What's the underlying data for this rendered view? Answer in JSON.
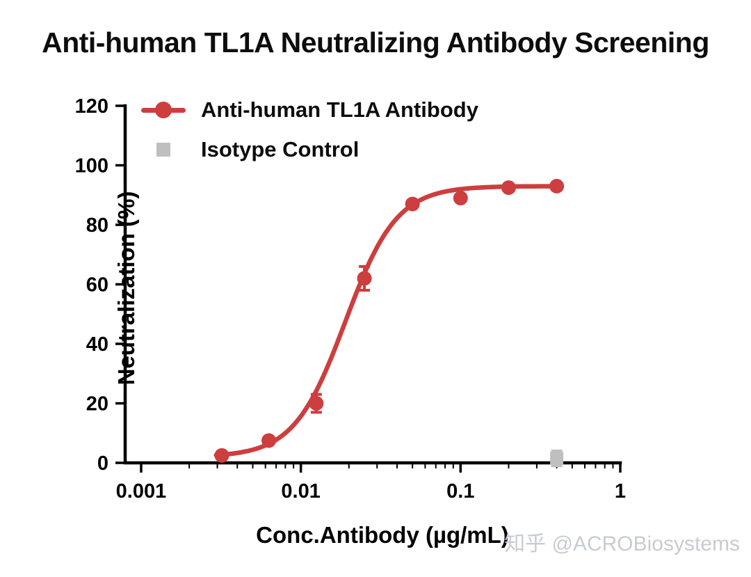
{
  "title": "Anti-human TL1A Neutralizing Antibody Screening",
  "watermark": "知乎 @ACROBiosystems",
  "legend": [
    {
      "label": "Anti-human TL1A Antibody",
      "marker": "circle-line",
      "color": "#CD3E3E"
    },
    {
      "label": "Isotype Control",
      "marker": "square",
      "color": "#BFBFBF"
    }
  ],
  "chart_data": {
    "type": "scatter",
    "title": "Anti-human TL1A Neutralizing Antibody Screening",
    "xlabel": "Conc.Antibody (µg/mL)",
    "ylabel": "Neutralization (%)",
    "x_scale": "log10",
    "xlim": [
      0.001,
      1
    ],
    "ylim": [
      0,
      120
    ],
    "x_ticks": [
      {
        "v": 0.001,
        "label": "0.001"
      },
      {
        "v": 0.01,
        "label": "0.01"
      },
      {
        "v": 0.1,
        "label": "0.1"
      },
      {
        "v": 1,
        "label": "1"
      }
    ],
    "y_ticks": [
      0,
      20,
      40,
      60,
      80,
      100,
      120
    ],
    "grid": false,
    "legend_position": "top-left-inside",
    "series": [
      {
        "name": "Anti-human TL1A Antibody",
        "color": "#CD3E3E",
        "marker": "circle",
        "points": [
          {
            "x": 0.0032,
            "y": 2.5,
            "err": 0
          },
          {
            "x": 0.0063,
            "y": 7.5,
            "err": 0
          },
          {
            "x": 0.0125,
            "y": 20,
            "err": 3
          },
          {
            "x": 0.025,
            "y": 62,
            "err": 4
          },
          {
            "x": 0.05,
            "y": 87,
            "err": 0
          },
          {
            "x": 0.1,
            "y": 89,
            "err": 0
          },
          {
            "x": 0.2,
            "y": 92.5,
            "err": 0
          },
          {
            "x": 0.4,
            "y": 93,
            "err": 0
          }
        ],
        "fit": {
          "model": "4PL",
          "bottom": 2,
          "top": 93,
          "ec50": 0.019,
          "hill": 2.7
        }
      },
      {
        "name": "Isotype Control",
        "color": "#BFBFBF",
        "marker": "square",
        "points": [
          {
            "x": 0.4,
            "y": 1.5,
            "err": 2.5
          }
        ]
      }
    ]
  }
}
